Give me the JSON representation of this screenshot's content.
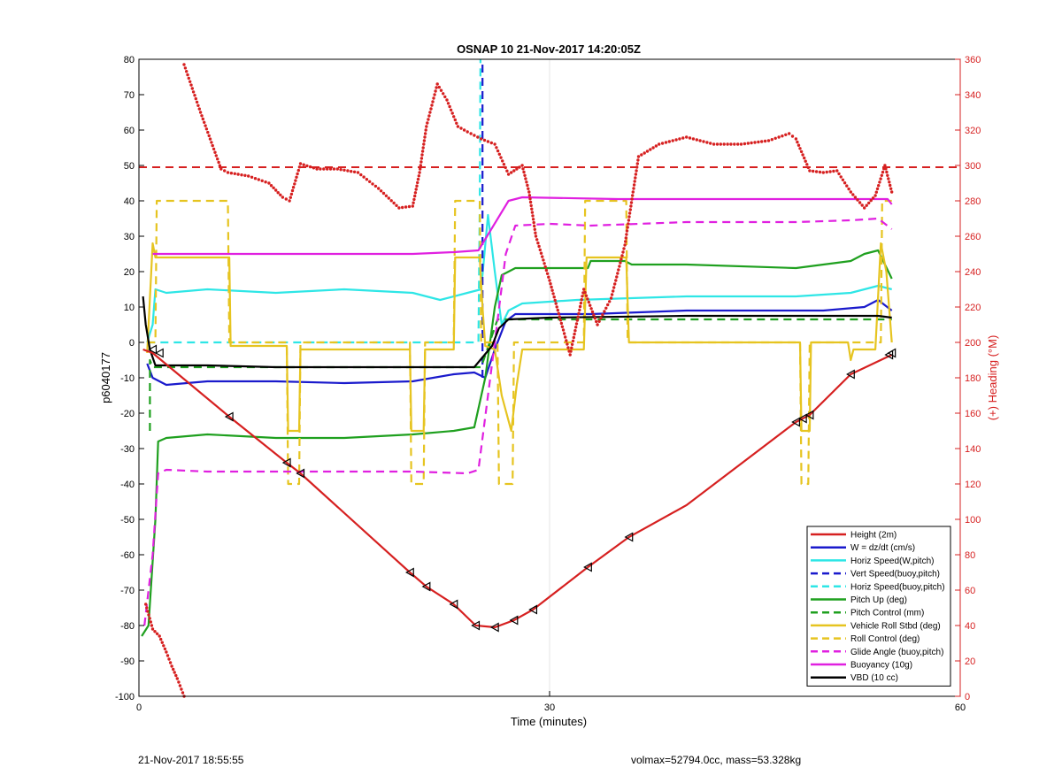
{
  "chart_data": {
    "type": "line",
    "title": "OSNAP 10 21-Nov-2017 14:20:05Z",
    "xlabel": "Time (minutes)",
    "ylabel": "p6040177",
    "y2label": "(+) Heading (°M)",
    "xlim": [
      0,
      60
    ],
    "ylim": [
      -100,
      80
    ],
    "y2lim": [
      0,
      360
    ],
    "xticks": [
      0,
      30,
      60
    ],
    "yticks": [
      -100,
      -90,
      -80,
      -70,
      -60,
      -50,
      -40,
      -30,
      -20,
      -10,
      0,
      10,
      20,
      30,
      40,
      50,
      60,
      70,
      80
    ],
    "y2ticks": [
      0,
      20,
      40,
      60,
      80,
      100,
      120,
      140,
      160,
      180,
      200,
      220,
      240,
      260,
      280,
      300,
      320,
      340,
      360
    ],
    "grid": "x only",
    "legend_position": "bottom-right",
    "colors": {
      "red": "#d62020",
      "blue": "#1a1acc",
      "cyan": "#2ee6e6",
      "green": "#1fa01f",
      "yellow": "#e6c420",
      "magenta": "#e020e0",
      "black": "#000000",
      "right_axis": "#d62020"
    },
    "series": [
      {
        "name": "Height (2m)",
        "color": "#d62020",
        "style": "solid",
        "x": [
          0.3,
          1.0,
          6.6,
          10.8,
          11.8,
          19.8,
          21.0,
          23.0,
          24.6,
          26.0,
          27.4,
          28.8,
          32.8,
          35.8,
          40.0,
          48.0,
          49.0,
          52.0,
          55.0
        ],
        "y": [
          -2,
          -3,
          -21,
          -34,
          -37,
          -65,
          -69,
          -74,
          -80,
          -80.5,
          -78.5,
          -75.5,
          -63.5,
          -55,
          -46,
          -22.5,
          -20.5,
          -9,
          -3.5
        ]
      },
      {
        "name": "W = dz/dt (cm/s)",
        "color": "#1a1acc",
        "style": "solid",
        "x": [
          0.6,
          1.0,
          2.0,
          5.0,
          10.0,
          15.0,
          20.0,
          23.0,
          24.5,
          25.3,
          26.0,
          26.8,
          27.5,
          33.0,
          40.0,
          50.0,
          53.0,
          54.0,
          55.0
        ],
        "y": [
          -6,
          -10,
          -12,
          -11,
          -11,
          -11.5,
          -11,
          -9,
          -8.5,
          -10,
          -2,
          6,
          8,
          8,
          9,
          9,
          10,
          12,
          9
        ]
      },
      {
        "name": "Horiz Speed(W,pitch)",
        "color": "#2ee6e6",
        "style": "solid",
        "x": [
          0.6,
          1.0,
          1.2,
          2.0,
          5.0,
          10.0,
          15.0,
          20.0,
          22.0,
          24.0,
          25.0,
          25.5,
          26.0,
          26.5,
          27.0,
          28.0,
          32.0,
          40.0,
          48.0,
          52.0,
          54.0,
          55.0
        ],
        "y": [
          0,
          5,
          15,
          14,
          15,
          14,
          15,
          14,
          12,
          14,
          15,
          36,
          20,
          5,
          9,
          11,
          12,
          13,
          13,
          14,
          16,
          15
        ]
      },
      {
        "name": "Vert Speed(buoy,pitch)",
        "color": "#1a1acc",
        "style": "dashed",
        "x": [
          25.1,
          25.1
        ],
        "y": [
          -10,
          80
        ]
      },
      {
        "name": "Horiz Speed(buoy,pitch)",
        "color": "#2ee6e6",
        "style": "dashed",
        "x": [
          0.6,
          24.8,
          24.9,
          24.95
        ],
        "y": [
          0,
          0,
          40,
          80
        ]
      },
      {
        "name": "Pitch Up (deg)",
        "color": "#1fa01f",
        "style": "solid",
        "x": [
          0.2,
          0.7,
          1.2,
          1.4,
          2.0,
          5.0,
          10.0,
          15.0,
          20.0,
          23.0,
          24.5,
          25.3,
          26.0,
          26.5,
          27.5,
          30.0,
          32.8,
          33.0,
          35.5,
          36.0,
          40.0,
          48.0,
          52.0,
          53.0,
          54.0,
          55.0
        ],
        "y": [
          -83,
          -80,
          -50,
          -28,
          -27,
          -26,
          -27,
          -27,
          -26,
          -25,
          -24,
          -10,
          10,
          19,
          21,
          21,
          21,
          23,
          23,
          22,
          22,
          21,
          23,
          25,
          26,
          18
        ]
      },
      {
        "name": "Pitch Control (mm)",
        "color": "#1fa01f",
        "style": "dashed",
        "x": [
          0.8,
          0.8,
          1.0,
          25.0,
          26.2,
          55.0
        ],
        "y": [
          -25,
          -5,
          -7,
          -7,
          6.5,
          6.5
        ]
      },
      {
        "name": "Vehicle Roll Stbd (deg)",
        "color": "#e6c420",
        "style": "solid",
        "x": [
          0.6,
          1.0,
          1.2,
          6.6,
          6.7,
          10.8,
          10.9,
          11.7,
          11.8,
          19.8,
          19.9,
          20.8,
          20.9,
          23.0,
          23.1,
          24.9,
          25.1,
          25.3,
          26.0,
          26.5,
          27.2,
          27.6,
          28.0,
          32.5,
          32.7,
          35.6,
          35.8,
          48.3,
          48.4,
          49.0,
          49.1,
          51.8,
          52.0,
          52.2,
          53.8,
          54.2,
          54.6,
          55.0
        ],
        "y": [
          -3,
          28,
          24,
          24,
          -1,
          -1,
          -25,
          -25,
          -2,
          -2,
          -25,
          -25,
          -2,
          -2,
          24,
          24,
          10,
          -1,
          -2,
          -15,
          -25,
          -12,
          -2,
          -2,
          24,
          24,
          0,
          0,
          -25,
          -25,
          0,
          0,
          -5,
          -2,
          -2,
          28,
          20,
          0
        ]
      },
      {
        "name": "Roll Control (deg)",
        "color": "#e6c420",
        "style": "dashed",
        "x": [
          0.6,
          1.2,
          1.3,
          6.5,
          6.6,
          10.8,
          10.9,
          11.7,
          11.8,
          19.8,
          19.9,
          20.8,
          20.9,
          23.0,
          23.1,
          24.9,
          25.0,
          26.2,
          26.3,
          27.3,
          27.4,
          32.5,
          32.6,
          35.6,
          35.7,
          48.3,
          48.4,
          48.9,
          49.0,
          54.2,
          54.3,
          55.0
        ],
        "y": [
          0,
          0,
          40,
          40,
          0,
          0,
          -40,
          -40,
          0,
          0,
          -40,
          -40,
          0,
          0,
          40,
          40,
          0,
          0,
          -40,
          -40,
          0,
          0,
          40,
          40,
          0,
          0,
          -40,
          -40,
          0,
          0,
          40,
          40
        ]
      },
      {
        "name": "Glide Angle (buoy,pitch)",
        "color": "#e020e0",
        "style": "dashed",
        "x": [
          0.4,
          1.0,
          1.4,
          2.0,
          5.0,
          10.0,
          15.0,
          20.0,
          24.0,
          24.8,
          26.0,
          26.8,
          27.5,
          30.0,
          33.0,
          40.0,
          48.0,
          52.0,
          54.0,
          55.0
        ],
        "y": [
          -80,
          -60,
          -37,
          -36,
          -36.5,
          -36.5,
          -36.5,
          -36.5,
          -37,
          -36,
          0,
          25,
          33,
          33.5,
          33,
          34,
          34,
          34.5,
          35,
          32
        ]
      },
      {
        "name": "Buoyancy (10g)",
        "color": "#e020e0",
        "style": "solid",
        "x": [
          1.0,
          20.0,
          23.0,
          24.8,
          27.0,
          28.0,
          35.0,
          45.0,
          54.7,
          55.0
        ],
        "y": [
          25,
          25,
          25.5,
          26,
          40,
          41,
          40.5,
          40.5,
          40.5,
          39
        ]
      },
      {
        "name": "VBD (10 cc)",
        "color": "#000000",
        "style": "solid",
        "x": [
          0.3,
          0.5,
          0.8,
          1.2,
          5.0,
          10.0,
          15.0,
          20.0,
          24.5,
          25.8,
          26.3,
          27.0,
          30.0,
          40.0,
          50.0,
          54.0,
          55.0
        ],
        "y": [
          13,
          5,
          -2,
          -6.5,
          -6.5,
          -7,
          -7,
          -7,
          -7,
          -1,
          4,
          6.5,
          7,
          7.5,
          7.5,
          7.5,
          7
        ]
      }
    ],
    "heading": {
      "name": "Heading",
      "axis": "right",
      "color": "#d62020",
      "style": "dotted",
      "x": [
        3.3,
        4.5,
        6.0,
        6.5,
        8.0,
        9.5,
        10.5,
        11.0,
        11.8,
        13.0,
        14.5,
        16.0,
        17.5,
        19.0,
        20.0,
        20.5,
        21.0,
        21.8,
        22.5,
        23.3,
        24.0,
        25.0,
        26.0,
        27.0,
        28.0,
        28.5,
        29.0,
        30.0,
        31.0,
        31.5,
        32.5,
        33.5,
        34.5,
        35.5,
        36.5,
        38.0,
        40.0,
        42.0,
        44.0,
        46.0,
        47.5,
        48.0,
        49.0,
        50.0,
        51.0,
        52.0,
        53.0,
        53.8,
        54.5,
        55.0
      ],
      "y": [
        357,
        330,
        298,
        296,
        294,
        290,
        282,
        280,
        301,
        298,
        298,
        296,
        287,
        276,
        277,
        296,
        322,
        346,
        337,
        322,
        319,
        315,
        312,
        295,
        300,
        285,
        260,
        235,
        207,
        193,
        230,
        210,
        225,
        255,
        305,
        312,
        316,
        312,
        312,
        314,
        318,
        315,
        297,
        296,
        297,
        285,
        276,
        283,
        300,
        285
      ]
    },
    "heading_start": {
      "x": [
        0.5,
        1.0,
        1.5,
        2.0,
        2.4,
        2.8,
        3.0,
        3.3
      ],
      "y": [
        52,
        38,
        34,
        25,
        17,
        10,
        6,
        0
      ]
    },
    "heading_ref": {
      "name": "Heading reference",
      "axis": "right",
      "color": "#d62020",
      "style": "dashed",
      "y": 299
    },
    "triangle_markers": {
      "x": [
        1.0,
        1.5,
        6.6,
        10.8,
        11.8,
        19.8,
        21.0,
        23.0,
        24.6,
        26.0,
        27.4,
        28.8,
        32.8,
        35.8,
        48.0,
        48.5,
        49.0,
        52.0,
        54.8,
        55.0
      ],
      "y": [
        -2,
        -3,
        -21,
        -34,
        -37,
        -65,
        -69,
        -74,
        -80,
        -80.5,
        -78.5,
        -75.5,
        -63.5,
        -55,
        -22.5,
        -21.5,
        -20.5,
        -9,
        -3.5,
        -3
      ]
    }
  },
  "footer": {
    "timestamp": "21-Nov-2017 18:55:55",
    "info": "volmax=52794.0cc, mass=53.328kg"
  }
}
